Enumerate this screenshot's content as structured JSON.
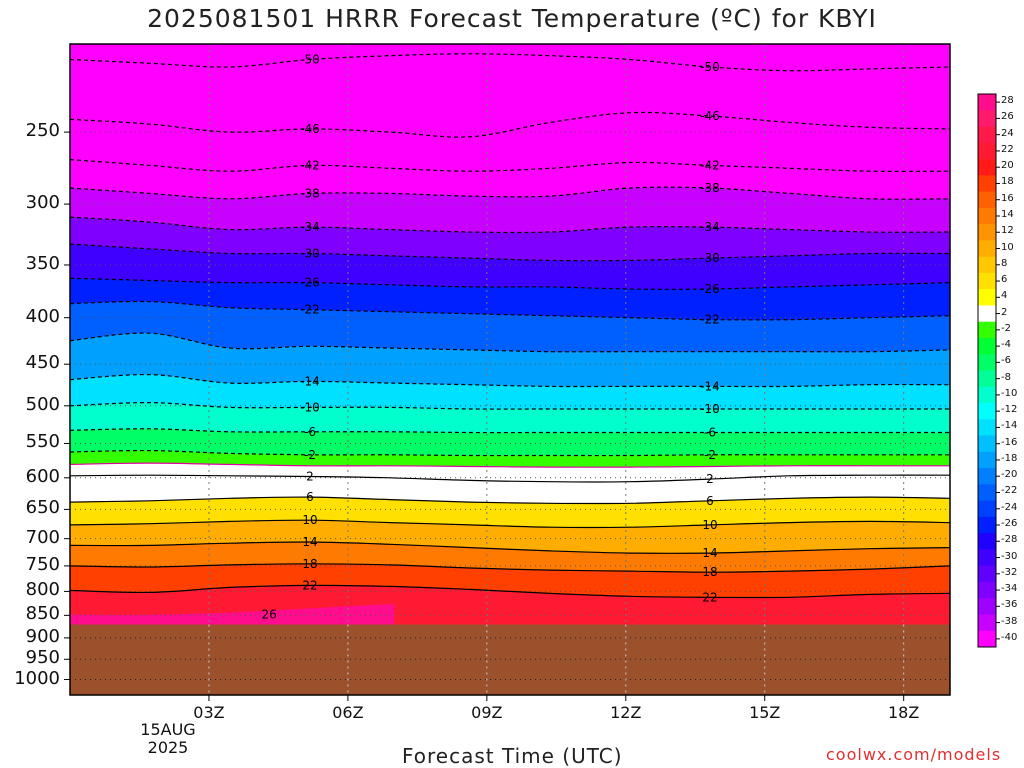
{
  "chart_data": {
    "type": "heatmap",
    "title": "2025081501 HRRR Forecast Temperature (ºC) for KBYI",
    "xlabel": "Forecast Time (UTC)",
    "ylabel": "",
    "credit": "coolwx.com/models",
    "x_ticks": [
      "03Z",
      "06Z",
      "09Z",
      "12Z",
      "15Z",
      "18Z"
    ],
    "x_tick_hours": [
      3,
      6,
      9,
      12,
      15,
      18
    ],
    "x_range_hours": [
      0,
      19
    ],
    "date_label": [
      "15AUG",
      "2025"
    ],
    "y_ticks": [
      250,
      300,
      350,
      400,
      450,
      500,
      550,
      600,
      650,
      700,
      750,
      800,
      850,
      900,
      950,
      1000
    ],
    "y_range_hpa": [
      200,
      1040
    ],
    "y_scale": "log",
    "surface_pressure_hpa": 870,
    "grid": "dotted",
    "colorbar": {
      "levels": [
        28,
        26,
        24,
        22,
        20,
        18,
        16,
        14,
        12,
        10,
        8,
        6,
        4,
        2,
        -2,
        -4,
        -6,
        -8,
        -10,
        -12,
        -14,
        -16,
        -18,
        -20,
        -22,
        -24,
        -26,
        -28,
        -30,
        -32,
        -34,
        -36,
        -38,
        -40
      ],
      "colors": [
        "#ff0d8c",
        "#ff1a6e",
        "#ff1a4a",
        "#ff1a33",
        "#ff1a1a",
        "#ff4000",
        "#ff6000",
        "#ff7a00",
        "#ff9400",
        "#ffad00",
        "#ffc800",
        "#ffe000",
        "#ffff00",
        "#ffffff",
        "#33ff00",
        "#00ff33",
        "#00ff66",
        "#00ff99",
        "#00ffcc",
        "#00ffff",
        "#00e0ff",
        "#00c0ff",
        "#00a0ff",
        "#0080ff",
        "#0060ff",
        "#0040ff",
        "#0020ff",
        "#2000ff",
        "#4000ff",
        "#6000ff",
        "#8000ff",
        "#a000ff",
        "#c800ff",
        "#ff00ff"
      ]
    },
    "isotherms": [
      {
        "value": -50,
        "label": "-50",
        "pressure_hpa": [
          208,
          210,
          212,
          208,
          206,
          205,
          206,
          208,
          212,
          214,
          213,
          212
        ]
      },
      {
        "value": -46,
        "label": "-46",
        "pressure_hpa": [
          242,
          245,
          250,
          248,
          250,
          253,
          244,
          238,
          240,
          244,
          247,
          248
        ]
      },
      {
        "value": -42,
        "label": "-42",
        "pressure_hpa": [
          268,
          272,
          276,
          272,
          274,
          276,
          274,
          270,
          272,
          274,
          276,
          276
        ]
      },
      {
        "value": -38,
        "label": "-38",
        "pressure_hpa": [
          288,
          292,
          296,
          292,
          292,
          294,
          294,
          288,
          288,
          292,
          296,
          296
        ]
      },
      {
        "value": -34,
        "label": "-34",
        "pressure_hpa": [
          310,
          314,
          320,
          318,
          320,
          322,
          322,
          318,
          318,
          320,
          322,
          322
        ]
      },
      {
        "value": -30,
        "label": "-30",
        "pressure_hpa": [
          332,
          336,
          340,
          340,
          342,
          344,
          346,
          346,
          344,
          342,
          340,
          340
        ]
      },
      {
        "value": -26,
        "label": "-26",
        "pressure_hpa": [
          362,
          364,
          366,
          366,
          368,
          370,
          370,
          372,
          372,
          370,
          368,
          366
        ]
      },
      {
        "value": -22,
        "label": "-22",
        "pressure_hpa": [
          386,
          384,
          390,
          392,
          394,
          396,
          398,
          400,
          402,
          402,
          400,
          398
        ]
      },
      {
        "value": -18,
        "label": "",
        "pressure_hpa": [
          424,
          416,
          432,
          430,
          432,
          434,
          436,
          436,
          436,
          436,
          436,
          434
        ]
      },
      {
        "value": -14,
        "label": "-14",
        "pressure_hpa": [
          468,
          462,
          472,
          470,
          472,
          474,
          476,
          476,
          476,
          476,
          474,
          474
        ]
      },
      {
        "value": -10,
        "label": "-10",
        "pressure_hpa": [
          500,
          496,
          502,
          502,
          502,
          504,
          504,
          504,
          504,
          504,
          504,
          504
        ]
      },
      {
        "value": -6,
        "label": "-6",
        "pressure_hpa": [
          532,
          530,
          534,
          534,
          534,
          535,
          535,
          535,
          535,
          535,
          535,
          535
        ]
      },
      {
        "value": -2,
        "label": "-2",
        "pressure_hpa": [
          562,
          560,
          564,
          566,
          566,
          567,
          567,
          567,
          566,
          566,
          566,
          566
        ]
      },
      {
        "value": 0,
        "label": "",
        "pressure_hpa": [
          580,
          578,
          580,
          582,
          582,
          583,
          584,
          584,
          583,
          582,
          582,
          582
        ]
      },
      {
        "value": 2,
        "label": "2",
        "pressure_hpa": [
          597,
          596,
          597,
          598,
          600,
          604,
          606,
          606,
          602,
          597,
          596,
          596
        ]
      },
      {
        "value": 6,
        "label": "6",
        "pressure_hpa": [
          638,
          636,
          632,
          630,
          634,
          638,
          640,
          640,
          636,
          632,
          630,
          632
        ]
      },
      {
        "value": 10,
        "label": "10",
        "pressure_hpa": [
          676,
          674,
          670,
          668,
          672,
          676,
          680,
          680,
          676,
          672,
          670,
          672
        ]
      },
      {
        "value": 14,
        "label": "14",
        "pressure_hpa": [
          712,
          712,
          708,
          706,
          710,
          716,
          722,
          726,
          726,
          722,
          718,
          716
        ]
      },
      {
        "value": 18,
        "label": "18",
        "pressure_hpa": [
          750,
          752,
          748,
          746,
          748,
          754,
          758,
          760,
          762,
          760,
          756,
          750
        ]
      },
      {
        "value": 22,
        "label": "22",
        "pressure_hpa": [
          798,
          802,
          792,
          788,
          790,
          796,
          804,
          810,
          812,
          812,
          806,
          804
        ]
      }
    ],
    "warm_core_26": {
      "label": "26",
      "pressure_hpa": 848
    }
  }
}
